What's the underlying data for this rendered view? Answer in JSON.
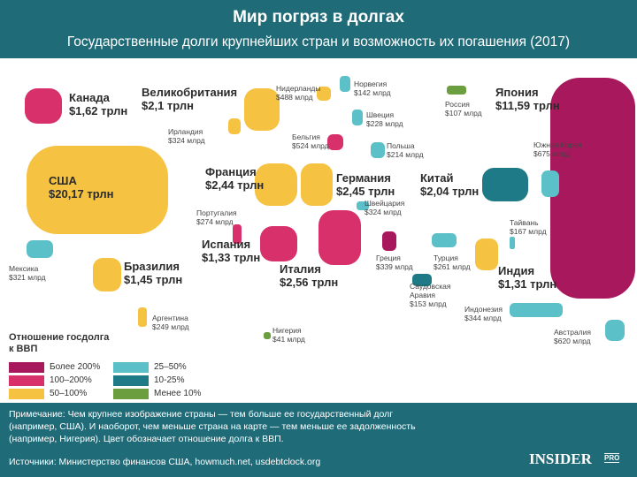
{
  "header": {
    "title": "Мир погряз в долгах",
    "subtitle": "Государственные долги крупнейших стран и возможность их погашения (2017)"
  },
  "countries": [
    {
      "name": "Канада",
      "amount": "$1,62 трлн",
      "color": "#d8306a"
    },
    {
      "name": "США",
      "amount": "$20,17 трлн",
      "color": "#f5c242"
    },
    {
      "name": "Мексика",
      "amount": "$321 млрд",
      "color": "#5bc0c7"
    },
    {
      "name": "Бразилия",
      "amount": "$1,45 трлн",
      "color": "#f5c242"
    },
    {
      "name": "Аргентина",
      "amount": "$249 млрд",
      "color": "#f5c242"
    },
    {
      "name": "Великобритания",
      "amount": "$2,1 трлн",
      "color": "#f5c242"
    },
    {
      "name": "Ирландия",
      "amount": "$324 млрд",
      "color": "#f5c242"
    },
    {
      "name": "Нидерланды",
      "amount": "$488 млрд",
      "color": "#f5c242"
    },
    {
      "name": "Норвегия",
      "amount": "$142 млрд",
      "color": "#5bc0c7"
    },
    {
      "name": "Швеция",
      "amount": "$228 млрд",
      "color": "#5bc0c7"
    },
    {
      "name": "Бельгия",
      "amount": "$524 млрд",
      "color": "#d8306a"
    },
    {
      "name": "Польша",
      "amount": "$214 млрд",
      "color": "#5bc0c7"
    },
    {
      "name": "Россия",
      "amount": "$107 млрд",
      "color": "#6a9e3f"
    },
    {
      "name": "Япония",
      "amount": "$11,59 трлн",
      "color": "#a8185c"
    },
    {
      "name": "Южная Корея",
      "amount": "$675 млрд",
      "color": "#5bc0c7"
    },
    {
      "name": "Франция",
      "amount": "$2,44 трлн",
      "color": "#f5c242"
    },
    {
      "name": "Германия",
      "amount": "$2,45 трлн",
      "color": "#f5c242"
    },
    {
      "name": "Китай",
      "amount": "$2,04 трлн",
      "color": "#1e7a86"
    },
    {
      "name": "Швейцария",
      "amount": "$324 млрд",
      "color": "#5bc0c7"
    },
    {
      "name": "Португалия",
      "amount": "$274 млрд",
      "color": "#d8306a"
    },
    {
      "name": "Испания",
      "amount": "$1,33 трлн",
      "color": "#d8306a"
    },
    {
      "name": "Италия",
      "amount": "$2,56 трлн",
      "color": "#d8306a"
    },
    {
      "name": "Греция",
      "amount": "$339 млрд",
      "color": "#a8185c"
    },
    {
      "name": "Турция",
      "amount": "$261 млрд",
      "color": "#5bc0c7"
    },
    {
      "name": "Тайвань",
      "amount": "$167 млрд",
      "color": "#5bc0c7"
    },
    {
      "name": "Индия",
      "amount": "$1,31 трлн",
      "color": "#f5c242"
    },
    {
      "name": "Саудовская Аравия",
      "amount": "$153 млрд",
      "color": "#1e7a86"
    },
    {
      "name": "Индонезия",
      "amount": "$344 млрд",
      "color": "#5bc0c7"
    },
    {
      "name": "Австралия",
      "amount": "$620 млрд",
      "color": "#5bc0c7"
    },
    {
      "name": "Нигерия",
      "amount": "$41 млрд",
      "color": "#6a9e3f"
    }
  ],
  "legend": {
    "title": "Отношение госдолга к ВВП",
    "items": [
      {
        "label": "Более 200%",
        "color": "#a8185c"
      },
      {
        "label": "100–200%",
        "color": "#d8306a"
      },
      {
        "label": "50–100%",
        "color": "#f5c242"
      },
      {
        "label": "25–50%",
        "color": "#5bc0c7"
      },
      {
        "label": "10-25%",
        "color": "#1e7a86"
      },
      {
        "label": "Менее 10%",
        "color": "#6a9e3f"
      }
    ]
  },
  "footer": {
    "note": [
      "Примечание: Чем крупнее изображение страны — тем больше ее государственный долг",
      "(например, США). И наоборот, чем меньше страна на карте — тем меньше ее задолженность",
      "(например, Нигерия). Цвет обозначает отношение долга к ВВП."
    ],
    "sources": "Источники: Министерство финансов США, howmuch.net, usdebtclock.org",
    "logo": "INSIDER",
    "logo_sub": "PRO"
  }
}
